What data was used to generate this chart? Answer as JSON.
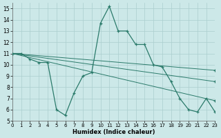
{
  "xlabel": "Humidex (Indice chaleur)",
  "xlim": [
    0,
    23
  ],
  "ylim": [
    5,
    15.5
  ],
  "yticks": [
    5,
    6,
    7,
    8,
    9,
    10,
    11,
    12,
    13,
    14,
    15
  ],
  "xticks": [
    0,
    1,
    2,
    3,
    4,
    5,
    6,
    7,
    8,
    9,
    10,
    11,
    12,
    13,
    14,
    15,
    16,
    17,
    18,
    19,
    20,
    21,
    22,
    23
  ],
  "bg_color": "#cce8e8",
  "grid_color": "#aacece",
  "line_color": "#2a7a6a",
  "main_line": {
    "x": [
      0,
      1,
      2,
      3,
      4,
      5,
      6,
      7,
      8,
      9,
      10,
      11,
      12,
      13,
      14,
      15,
      16,
      17,
      18,
      19,
      20,
      21,
      22,
      23
    ],
    "y": [
      11,
      11,
      10.5,
      10.2,
      10.2,
      6.0,
      5.5,
      7.5,
      9.0,
      9.3,
      13.7,
      15.2,
      13.0,
      13.0,
      11.8,
      11.8,
      10.0,
      9.8,
      8.5,
      7.0,
      6.0,
      5.8,
      7.0,
      5.8
    ]
  },
  "trend_lines": [
    {
      "x": [
        0,
        23
      ],
      "y": [
        11.0,
        9.5
      ]
    },
    {
      "x": [
        0,
        23
      ],
      "y": [
        11.0,
        8.5
      ]
    },
    {
      "x": [
        0,
        23
      ],
      "y": [
        11.0,
        6.8
      ]
    }
  ]
}
